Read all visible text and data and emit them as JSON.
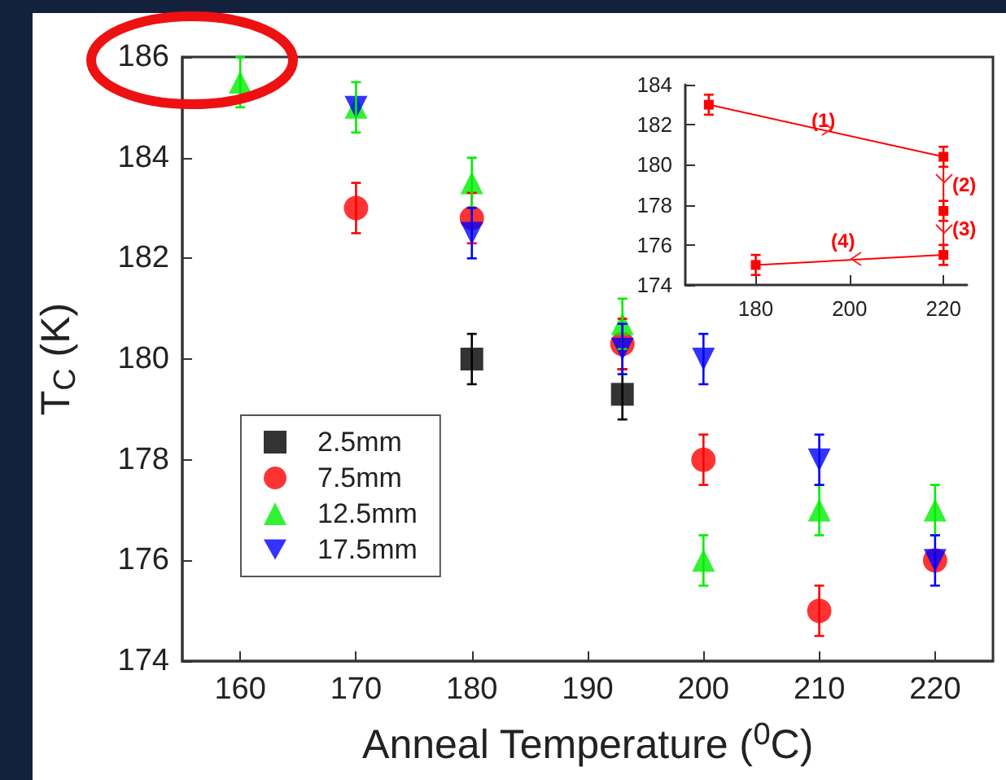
{
  "chart_data": [
    {
      "type": "scatter",
      "xlabel": "Anneal Temperature ($^{0}$C)",
      "ylabel": "T$_{C}$ (K)",
      "xlim": [
        155,
        225
      ],
      "ylim": [
        174,
        186
      ],
      "xticks": [
        160,
        170,
        180,
        190,
        200,
        210,
        220
      ],
      "yticks": [
        174,
        176,
        178,
        180,
        182,
        184,
        186
      ],
      "grid": false,
      "legend": "bottom left",
      "series": [
        {
          "name": "2.5mm",
          "color": "#000000",
          "marker": "square",
          "x": [
            180,
            193
          ],
          "values": [
            180.0,
            179.3
          ],
          "errors": [
            0.5,
            0.5
          ]
        },
        {
          "name": "7.5mm",
          "color": "#ff0000",
          "marker": "circle",
          "x": [
            170,
            180,
            193,
            200,
            210,
            220
          ],
          "values": [
            183.0,
            182.8,
            180.3,
            178.0,
            175.0,
            176.0
          ],
          "errors": [
            0.5,
            0.5,
            0.5,
            0.5,
            0.5,
            null
          ]
        },
        {
          "name": "12.5mm",
          "color": "#00ee00",
          "marker": "triangle",
          "x": [
            160,
            170,
            180,
            193,
            200,
            210,
            220
          ],
          "values": [
            185.5,
            185.0,
            183.5,
            180.7,
            176.0,
            177.0,
            177.0
          ],
          "errors": [
            0.5,
            0.5,
            0.5,
            0.5,
            0.5,
            0.5,
            0.5
          ]
        },
        {
          "name": "17.5mm",
          "color": "#0000ff",
          "marker": "triangle-down",
          "x": [
            170,
            180,
            193,
            200,
            210,
            220
          ],
          "values": [
            185.0,
            182.5,
            180.2,
            180.0,
            178.0,
            176.0
          ],
          "errors": [
            null,
            0.5,
            0.5,
            0.5,
            0.5,
            0.5
          ]
        }
      ]
    },
    {
      "type": "line",
      "xlim": [
        165,
        225
      ],
      "ylim": [
        174,
        184
      ],
      "xticks": [
        180,
        200,
        220
      ],
      "yticks": [
        174,
        176,
        178,
        180,
        182,
        184
      ],
      "grid": false,
      "marker": "square",
      "annotations": [
        "(1)",
        "(2)",
        "(3)",
        "(4)"
      ],
      "series": [
        {
          "color": "#ff0000",
          "x": [
            170,
            220,
            220,
            220,
            180
          ],
          "values": [
            183.0,
            180.4,
            177.7,
            175.5,
            175.0
          ],
          "errors": [
            0.5,
            0.5,
            0.5,
            0.5,
            0.5
          ]
        }
      ]
    }
  ]
}
